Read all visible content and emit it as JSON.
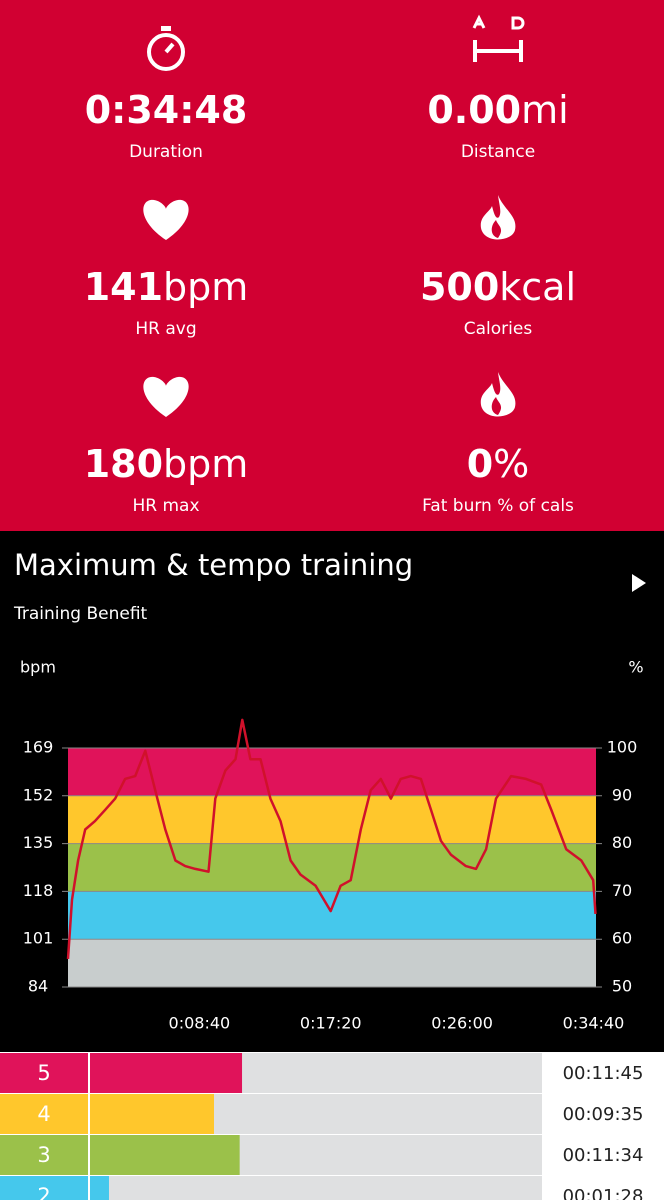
{
  "stats": [
    {
      "value": "0:34:48",
      "unit": "",
      "label": "Duration",
      "icon": "stopwatch"
    },
    {
      "value": "0.00",
      "unit": "mi",
      "label": "Distance",
      "icon": "ab"
    },
    {
      "value": "141",
      "unit": "bpm",
      "label": "HR avg",
      "icon": "heart"
    },
    {
      "value": "500",
      "unit": "kcal",
      "label": "Calories",
      "icon": "flame"
    },
    {
      "value": "180",
      "unit": "bpm",
      "label": "HR max",
      "icon": "heart"
    },
    {
      "value": "0",
      "unit": "%",
      "label": "Fat burn % of cals",
      "icon": "flame"
    }
  ],
  "title": "Maximum & tempo training",
  "subtitle": "Training Benefit",
  "chart_data": {
    "type": "line",
    "y_label": "bpm",
    "y2_label": "%",
    "x": [
      0,
      16,
      40,
      68,
      107,
      147,
      187,
      226,
      266,
      306,
      345,
      385,
      425,
      464,
      504,
      556,
      583,
      623,
      663,
      690,
      722,
      762,
      801,
      841,
      881,
      920,
      980,
      1040,
      1079,
      1119,
      1159,
      1198,
      1238,
      1278,
      1317,
      1357,
      1397,
      1437,
      1476,
      1516,
      1575,
      1615,
      1655,
      1694,
      1754,
      1813,
      1873,
      1913,
      1972,
      2032,
      2079,
      2088
    ],
    "series": [
      {
        "name": "HR",
        "color": "#d0112b",
        "values": [
          94,
          115,
          129,
          140,
          143,
          147,
          151,
          158,
          159,
          168,
          154,
          140,
          129,
          127,
          126,
          125,
          151,
          161,
          165,
          179,
          165,
          165,
          151,
          143,
          129,
          124,
          120,
          111,
          120,
          122,
          140,
          154,
          158,
          151,
          158,
          159,
          158,
          147,
          136,
          131,
          127,
          126,
          133,
          151,
          159,
          158,
          156,
          147,
          133,
          129,
          122,
          110
        ]
      }
    ],
    "xlim": [
      0,
      2090
    ],
    "xticks": [
      {
        "value": 520,
        "label": "0:08:40"
      },
      {
        "value": 1040,
        "label": "0:17:20"
      },
      {
        "value": 1560,
        "label": "0:26:00"
      },
      {
        "value": 2080,
        "label": "0:34:40"
      }
    ],
    "ylim": [
      84,
      169
    ],
    "yticks": [
      84,
      101,
      118,
      135,
      152,
      169
    ],
    "y2lim": [
      50,
      100
    ],
    "y2ticks": [
      50,
      60,
      70,
      80,
      90,
      100
    ],
    "band_colors": [
      "#c8cdcd",
      "#45c8ec",
      "#9bc14a",
      "#ffc72c",
      "#e0135a"
    ]
  },
  "zones": [
    {
      "zone": 5,
      "color": "#e0135a",
      "time": {
        "value": 705,
        "label": "00:11:45"
      }
    },
    {
      "zone": 4,
      "color": "#ffc72c",
      "time": {
        "value": 575,
        "label": "00:09:35"
      }
    },
    {
      "zone": 3,
      "color": "#9bc14a",
      "time": {
        "value": 694,
        "label": "00:11:34"
      }
    },
    {
      "zone": 2,
      "color": "#45c8ec",
      "time": {
        "value": 88,
        "label": "00:01:28"
      }
    }
  ]
}
